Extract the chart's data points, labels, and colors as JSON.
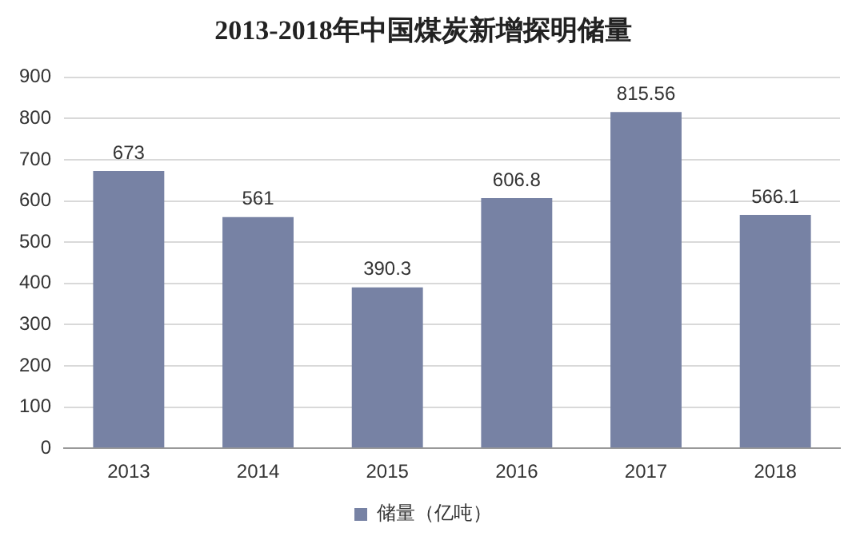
{
  "chart_data": {
    "type": "bar",
    "title": "2013-2018年中国煤炭新增探明储量",
    "categories": [
      "2013",
      "2014",
      "2015",
      "2016",
      "2017",
      "2018"
    ],
    "series": [
      {
        "name": "储量（亿吨）",
        "color": "#7782a4",
        "values": [
          673,
          561,
          390.3,
          606.8,
          815.56,
          566.1
        ]
      }
    ],
    "ylim": [
      0,
      900
    ],
    "yticks": [
      0,
      100,
      200,
      300,
      400,
      500,
      600,
      700,
      800,
      900
    ],
    "grid": "y",
    "legend": "bottom",
    "data_labels": true
  }
}
